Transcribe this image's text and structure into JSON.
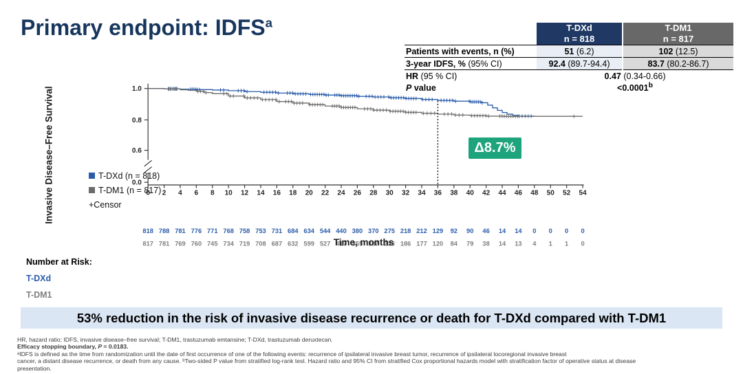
{
  "slide": {
    "title": "Primary endpoint: IDFS",
    "title_sup": "a"
  },
  "colors": {
    "title_navy": "#17365D",
    "tdxd_blue": "#2A5CAA",
    "tdm1_gray": "#6B6B6B",
    "delta_green": "#1EA47C",
    "banner_bg": "#DBE6F4",
    "header_navy": "#1F3864",
    "header_gray": "#686868",
    "tdxd_cell_bg": "#E9EDF5",
    "tdm1_cell_bg": "#DADADA"
  },
  "results_table": {
    "col_headers": [
      {
        "drug": "T-DXd",
        "n": "n = 818"
      },
      {
        "drug": "T-DM1",
        "n": "n = 817"
      }
    ],
    "rows": [
      {
        "label_bold": "Patients with events, n (%)",
        "label_rest": "",
        "tdxd_bold": "51",
        "tdxd_rest": " (6.2)",
        "tdm1_bold": "102",
        "tdm1_rest": " (12.5)"
      },
      {
        "label_bold": "3-year IDFS, %",
        "label_rest": " (95% CI)",
        "tdxd_bold": "92.4",
        "tdxd_rest": " (89.7-94.4)",
        "tdm1_bold": "83.7",
        "tdm1_rest": " (80.2-86.7)"
      }
    ],
    "hr_label_bold": "HR",
    "hr_label_rest": " (95 % CI)",
    "hr_value_bold": "0.47",
    "hr_value_rest": " (0.34-0.66)",
    "p_label_p": "P",
    "p_label_rest": " value",
    "p_value": "<0.0001",
    "p_sup": "b"
  },
  "chart_data": {
    "type": "line",
    "subtype": "kaplan-meier",
    "xlabel": "Time, months",
    "ylabel": "Invasive Disease–Free Survival",
    "x_ticks": [
      0,
      2,
      4,
      6,
      8,
      10,
      12,
      14,
      16,
      18,
      20,
      22,
      24,
      26,
      28,
      30,
      32,
      34,
      36,
      38,
      40,
      42,
      44,
      46,
      48,
      50,
      52,
      54
    ],
    "y_ticks": [
      "1.0",
      "0.8",
      "0.6",
      "0.0"
    ],
    "y_axis_break": true,
    "ylim": [
      0.0,
      1.0
    ],
    "delta_annotation": {
      "label": "Δ8.7%",
      "at_month": 36
    },
    "censor_label": "+Censor",
    "series": [
      {
        "name": "T-DXd (n = 818)",
        "color": "#2A5CAA",
        "points": [
          [
            0,
            1.0
          ],
          [
            2,
            0.998
          ],
          [
            4,
            0.996
          ],
          [
            6,
            0.993
          ],
          [
            8,
            0.99
          ],
          [
            10,
            0.986
          ],
          [
            12,
            0.98
          ],
          [
            14,
            0.976
          ],
          [
            16,
            0.971
          ],
          [
            18,
            0.966
          ],
          [
            20,
            0.962
          ],
          [
            22,
            0.958
          ],
          [
            24,
            0.954
          ],
          [
            26,
            0.95
          ],
          [
            28,
            0.946
          ],
          [
            30,
            0.941
          ],
          [
            32,
            0.936
          ],
          [
            34,
            0.93
          ],
          [
            36,
            0.924
          ],
          [
            38,
            0.919
          ],
          [
            40,
            0.915
          ],
          [
            41.5,
            0.909
          ],
          [
            42.2,
            0.894
          ],
          [
            42.8,
            0.877
          ],
          [
            43.4,
            0.861
          ],
          [
            44,
            0.847
          ],
          [
            44.6,
            0.837
          ],
          [
            45.3,
            0.828
          ],
          [
            46,
            0.824
          ],
          [
            48,
            0.824
          ]
        ],
        "censor_clusters": [
          [
            2.6,
            3.6,
            6
          ],
          [
            5.3,
            6.4,
            5
          ],
          [
            9.0,
            9.4,
            2
          ],
          [
            11.2,
            12.3,
            4
          ],
          [
            14.4,
            16.2,
            6
          ],
          [
            17.3,
            19.6,
            8
          ],
          [
            20.2,
            22.4,
            9
          ],
          [
            23.2,
            26.2,
            12
          ],
          [
            27.1,
            29.3,
            7
          ],
          [
            29.9,
            33.3,
            12
          ],
          [
            34.1,
            35.3,
            4
          ],
          [
            36.4,
            38.2,
            6
          ],
          [
            39.9,
            41.5,
            8
          ],
          [
            46.1,
            47.6,
            5
          ]
        ]
      },
      {
        "name": "T-DM1 (n = 817)",
        "color": "#6B6B6B",
        "points": [
          [
            0,
            1.0
          ],
          [
            2,
            0.997
          ],
          [
            4,
            0.992
          ],
          [
            5,
            0.988
          ],
          [
            6,
            0.982
          ],
          [
            7,
            0.974
          ],
          [
            8,
            0.967
          ],
          [
            10,
            0.952
          ],
          [
            12,
            0.94
          ],
          [
            14,
            0.929
          ],
          [
            16,
            0.917
          ],
          [
            18,
            0.907
          ],
          [
            20,
            0.897
          ],
          [
            22,
            0.888
          ],
          [
            24,
            0.879
          ],
          [
            26,
            0.87
          ],
          [
            28,
            0.862
          ],
          [
            30,
            0.855
          ],
          [
            32,
            0.848
          ],
          [
            34,
            0.842
          ],
          [
            36,
            0.837
          ],
          [
            38,
            0.831
          ],
          [
            40,
            0.827
          ],
          [
            42,
            0.824
          ],
          [
            44,
            0.823
          ],
          [
            54,
            0.823
          ]
        ],
        "censor_clusters": [
          [
            2.5,
            3.5,
            5
          ],
          [
            6.2,
            7.2,
            4
          ],
          [
            9.4,
            10.6,
            4
          ],
          [
            11.9,
            13.6,
            5
          ],
          [
            14.2,
            16.3,
            6
          ],
          [
            17.1,
            19.2,
            7
          ],
          [
            20.1,
            21.7,
            6
          ],
          [
            22.9,
            25.7,
            11
          ],
          [
            26.9,
            29.6,
            8
          ],
          [
            30.1,
            33.3,
            11
          ],
          [
            34.2,
            35.6,
            4
          ],
          [
            36.8,
            39.1,
            6
          ],
          [
            40.2,
            42.3,
            7
          ],
          [
            43.7,
            45.9,
            9
          ],
          [
            52.9,
            53.0,
            1
          ]
        ]
      }
    ],
    "risk_table": {
      "heading": "Number at Risk:",
      "rows": [
        {
          "label": "T-DXd",
          "color": "#2A5CAA",
          "values": [
            818,
            788,
            781,
            776,
            771,
            768,
            758,
            753,
            731,
            684,
            634,
            544,
            440,
            380,
            370,
            275,
            218,
            212,
            129,
            92,
            90,
            46,
            14,
            14,
            0,
            0,
            0,
            0
          ]
        },
        {
          "label": "T-DM1",
          "color": "#7F7F7F",
          "values": [
            817,
            781,
            769,
            760,
            745,
            734,
            719,
            708,
            687,
            632,
            599,
            527,
            417,
            355,
            337,
            233,
            186,
            177,
            120,
            84,
            79,
            38,
            14,
            13,
            4,
            1,
            1,
            0
          ]
        }
      ]
    }
  },
  "banner": {
    "text": "53% reduction in the risk of invasive disease recurrence or death for T-DXd compared with T-DM1"
  },
  "footnotes": {
    "line1": "HR, hazard ratio; IDFS, invasive disease–free survival; T-DM1, trastuzumab emtansine; T-DXd, trastuzumab deruxtecan.",
    "line2_pre": "Efficacy stopping boundary, ",
    "line2_p": "P",
    "line2_post": " = 0.0183.",
    "line3": "ᵃIDFS is defined as the time from randomization until the date of first occurrence of one of the following events: recurrence of ipsilateral invasive breast tumor, recurrence of ipsilateral locoregional invasive breast",
    "line4": "cancer, a distant disease recurrence, or death from any cause. ᵇTwo-sided P value from stratified log-rank test. Hazard ratio and 95% CI from stratified Cox proportional hazards model with stratification factor of operative status at disease",
    "line5": "presentation."
  }
}
